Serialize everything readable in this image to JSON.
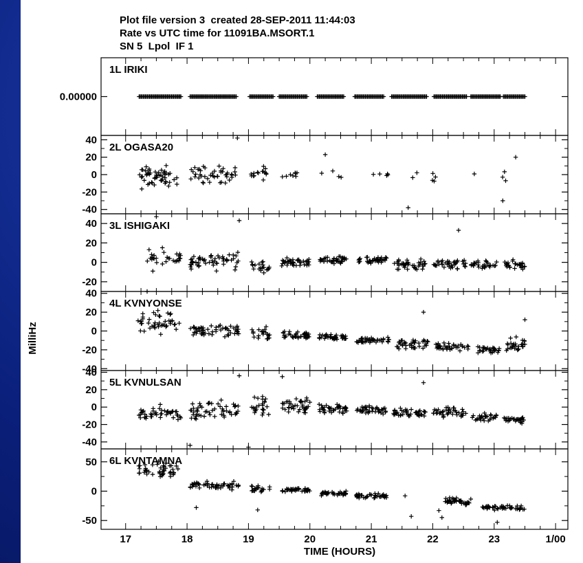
{
  "header": {
    "line1": "Plot file version 3  created 28-SEP-2011 11:44:03",
    "line2": "Rate vs UTC time for 11091BA.MSORT.1",
    "line3": "SN 5  Lpol  IF 1"
  },
  "chart_data": {
    "type": "scatter",
    "xlabel": "TIME (HOURS)",
    "ylabel": "MilliHz",
    "x_unit": "hours UTC",
    "xlim": [
      16.6,
      24.2
    ],
    "x_ticks": [
      17,
      18,
      19,
      20,
      21,
      22,
      23,
      24
    ],
    "x_tick_labels": [
      "17",
      "18",
      "19",
      "20",
      "21",
      "22",
      "23",
      "1/00"
    ],
    "grid": false,
    "marker": "plus",
    "panels": [
      {
        "name": "1L IRIKI",
        "ylim": [
          -1,
          1
        ],
        "y_ticks": [
          0
        ],
        "y_tick_labels": [
          "0.00000"
        ],
        "scans": [
          {
            "t0": 17.22,
            "t1": 17.9,
            "center": 0,
            "spread": 0
          },
          {
            "t0": 18.05,
            "t1": 18.8,
            "center": 0,
            "spread": 0
          },
          {
            "t0": 19.02,
            "t1": 19.4,
            "center": 0,
            "spread": 0
          },
          {
            "t0": 19.5,
            "t1": 19.95,
            "center": 0,
            "spread": 0
          },
          {
            "t0": 20.12,
            "t1": 20.55,
            "center": 0,
            "spread": 0
          },
          {
            "t0": 20.73,
            "t1": 21.2,
            "center": 0,
            "spread": 0
          },
          {
            "t0": 21.33,
            "t1": 21.9,
            "center": 0,
            "spread": 0
          },
          {
            "t0": 22.02,
            "t1": 22.55,
            "center": 0,
            "spread": 0
          },
          {
            "t0": 22.62,
            "t1": 23.1,
            "center": 0,
            "spread": 0
          },
          {
            "t0": 23.15,
            "t1": 23.5,
            "center": 0,
            "spread": 0
          }
        ]
      },
      {
        "name": "2L OGASA20",
        "ylim": [
          -45,
          45
        ],
        "y_ticks": [
          -40,
          -20,
          0,
          20,
          40
        ],
        "y_tick_labels": [
          "-40",
          "-20",
          "0",
          "20",
          "40"
        ],
        "scans": [
          {
            "t0": 17.2,
            "t1": 17.85,
            "center": -3,
            "spread": 18,
            "n": 55
          },
          {
            "t0": 18.05,
            "t1": 18.8,
            "center": 0,
            "spread": 14,
            "n": 45
          },
          {
            "t0": 19.0,
            "t1": 19.3,
            "center": 2,
            "spread": 12,
            "n": 15
          },
          {
            "t0": 19.55,
            "t1": 19.85,
            "center": 0,
            "spread": 6,
            "n": 8
          },
          {
            "t0": 20.15,
            "t1": 20.75,
            "center": 2,
            "spread": 10,
            "n": 4
          },
          {
            "t0": 21.0,
            "t1": 21.45,
            "center": 0,
            "spread": 2,
            "n": 5
          },
          {
            "t0": 21.6,
            "t1": 22.1,
            "center": -4,
            "spread": 10,
            "n": 6
          },
          {
            "t0": 22.5,
            "t1": 23.4,
            "center": 0,
            "spread": 12,
            "n": 4
          }
        ],
        "outliers": [
          {
            "x": 18.82,
            "y": 42
          },
          {
            "x": 20.25,
            "y": 23
          },
          {
            "x": 21.6,
            "y": -38
          },
          {
            "x": 23.14,
            "y": -30
          },
          {
            "x": 23.35,
            "y": 20
          }
        ]
      },
      {
        "name": "3L ISHIGAKI",
        "ylim": [
          -30,
          50
        ],
        "y_ticks": [
          -20,
          0,
          20,
          40
        ],
        "y_tick_labels": [
          "-20",
          "0",
          "20",
          "40"
        ],
        "scans": [
          {
            "t0": 17.3,
            "t1": 17.9,
            "center": 3,
            "spread": 15,
            "n": 30
          },
          {
            "t0": 18.05,
            "t1": 18.85,
            "center": 2,
            "spread": 13,
            "n": 55
          },
          {
            "t0": 19.05,
            "t1": 19.35,
            "center": -5,
            "spread": 10,
            "n": 20
          },
          {
            "t0": 19.5,
            "t1": 20.0,
            "center": 0,
            "spread": 6,
            "n": 40
          },
          {
            "t0": 20.15,
            "t1": 20.6,
            "center": 3,
            "spread": 5,
            "n": 40
          },
          {
            "t0": 20.75,
            "t1": 21.25,
            "center": 2,
            "spread": 5,
            "n": 40
          },
          {
            "t0": 21.35,
            "t1": 21.9,
            "center": -2,
            "spread": 7,
            "n": 40
          },
          {
            "t0": 22.0,
            "t1": 22.55,
            "center": -1,
            "spread": 8,
            "n": 40
          },
          {
            "t0": 22.62,
            "t1": 23.05,
            "center": -3,
            "spread": 6,
            "n": 30
          },
          {
            "t0": 23.15,
            "t1": 23.5,
            "center": -2,
            "spread": 7,
            "n": 30
          }
        ],
        "outliers": [
          {
            "x": 17.5,
            "y": 47
          },
          {
            "x": 18.85,
            "y": 43
          },
          {
            "x": 22.42,
            "y": 33
          }
        ]
      },
      {
        "name": "4L KVNYONSE",
        "ylim": [
          -42,
          42
        ],
        "y_ticks": [
          -40,
          -20,
          0,
          20,
          40
        ],
        "y_tick_labels": [
          "-40",
          "-20",
          "0",
          "20",
          "40"
        ],
        "scans": [
          {
            "t0": 17.2,
            "t1": 17.9,
            "center": 8,
            "spread": 16,
            "n": 45
          },
          {
            "t0": 18.05,
            "t1": 18.85,
            "center": 0,
            "spread": 10,
            "n": 55
          },
          {
            "t0": 19.05,
            "t1": 19.35,
            "center": -3,
            "spread": 10,
            "n": 20
          },
          {
            "t0": 19.55,
            "t1": 20.0,
            "center": -5,
            "spread": 6,
            "n": 40
          },
          {
            "t0": 20.15,
            "t1": 20.6,
            "center": -7,
            "spread": 5,
            "n": 40
          },
          {
            "t0": 20.75,
            "t1": 21.3,
            "center": -10,
            "spread": 5,
            "n": 40
          },
          {
            "t0": 21.4,
            "t1": 21.95,
            "center": -14,
            "spread": 8,
            "n": 40
          },
          {
            "t0": 22.05,
            "t1": 22.6,
            "center": -17,
            "spread": 6,
            "n": 40
          },
          {
            "t0": 22.7,
            "t1": 23.1,
            "center": -20,
            "spread": 6,
            "n": 30
          },
          {
            "t0": 23.2,
            "t1": 23.5,
            "center": -15,
            "spread": 10,
            "n": 30
          }
        ],
        "outliers": [
          {
            "x": 17.35,
            "y": 42
          },
          {
            "x": 21.85,
            "y": 20
          },
          {
            "x": 23.5,
            "y": 12
          }
        ]
      },
      {
        "name": "5L KVNULSAN",
        "ylim": [
          -48,
          42
        ],
        "y_ticks": [
          -40,
          -20,
          0,
          20,
          40
        ],
        "y_tick_labels": [
          "-40",
          "-20",
          "0",
          "20",
          "40"
        ],
        "scans": [
          {
            "t0": 17.2,
            "t1": 17.9,
            "center": -8,
            "spread": 13,
            "n": 45
          },
          {
            "t0": 18.05,
            "t1": 18.85,
            "center": -3,
            "spread": 15,
            "n": 55
          },
          {
            "t0": 19.05,
            "t1": 19.35,
            "center": 0,
            "spread": 16,
            "n": 25
          },
          {
            "t0": 19.55,
            "t1": 20.0,
            "center": 2,
            "spread": 14,
            "n": 40
          },
          {
            "t0": 20.15,
            "t1": 20.6,
            "center": -1,
            "spread": 10,
            "n": 40
          },
          {
            "t0": 20.75,
            "t1": 21.25,
            "center": -3,
            "spread": 7,
            "n": 40
          },
          {
            "t0": 21.35,
            "t1": 21.9,
            "center": -7,
            "spread": 8,
            "n": 40
          },
          {
            "t0": 22.0,
            "t1": 22.55,
            "center": -6,
            "spread": 9,
            "n": 40
          },
          {
            "t0": 22.62,
            "t1": 23.05,
            "center": -12,
            "spread": 7,
            "n": 30
          },
          {
            "t0": 23.15,
            "t1": 23.5,
            "center": -14,
            "spread": 6,
            "n": 30
          }
        ],
        "outliers": [
          {
            "x": 18.05,
            "y": -44
          },
          {
            "x": 18.85,
            "y": 36
          },
          {
            "x": 19.0,
            "y": -46
          },
          {
            "x": 19.55,
            "y": 35
          },
          {
            "x": 21.85,
            "y": 28
          }
        ]
      },
      {
        "name": "6L KVNTAMNA",
        "ylim": [
          -65,
          72
        ],
        "y_ticks": [
          -50,
          0,
          50
        ],
        "y_tick_labels": [
          "-50",
          "0",
          "50"
        ],
        "scans": [
          {
            "t0": 17.2,
            "t1": 17.9,
            "center": 35,
            "spread": 20,
            "n": 45
          },
          {
            "t0": 18.05,
            "t1": 18.85,
            "center": 10,
            "spread": 9,
            "n": 55
          },
          {
            "t0": 19.05,
            "t1": 19.35,
            "center": 5,
            "spread": 10,
            "n": 20
          },
          {
            "t0": 19.55,
            "t1": 20.0,
            "center": 2,
            "spread": 5,
            "n": 40
          },
          {
            "t0": 20.15,
            "t1": 20.6,
            "center": -4,
            "spread": 5,
            "n": 40
          },
          {
            "t0": 20.75,
            "t1": 21.25,
            "center": -8,
            "spread": 5,
            "n": 40
          },
          {
            "t0": 22.2,
            "t1": 22.65,
            "center": -18,
            "spread": 9,
            "n": 40
          },
          {
            "t0": 22.8,
            "t1": 23.5,
            "center": -28,
            "spread": 6,
            "n": 45
          }
        ],
        "outliers": [
          {
            "x": 21.55,
            "y": -8
          },
          {
            "x": 21.65,
            "y": -43
          },
          {
            "x": 22.15,
            "y": -45
          },
          {
            "x": 22.1,
            "y": -33
          },
          {
            "x": 23.05,
            "y": -53
          },
          {
            "x": 18.15,
            "y": -28
          },
          {
            "x": 19.15,
            "y": -32
          }
        ]
      }
    ]
  }
}
